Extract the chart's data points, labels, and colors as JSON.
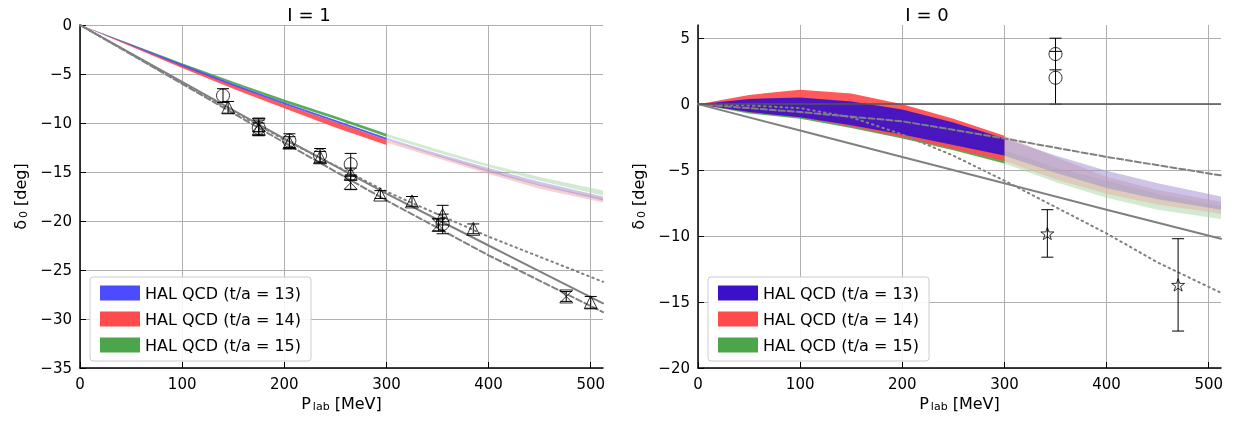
{
  "chart_data": [
    {
      "type": "line",
      "title": "I = 1",
      "xlabel": "P$_{lab}$ [MeV]",
      "ylabel": "δ$_{0}$ [deg]",
      "xlim": [
        0,
        512
      ],
      "xticks": [
        0,
        100,
        200,
        300,
        400,
        500
      ],
      "ylim": [
        -35,
        0
      ],
      "yticks": [
        -35,
        -30,
        -25,
        -20,
        -15,
        -10,
        -5,
        0
      ],
      "grid": true,
      "legend": "bottom left",
      "series": [
        {
          "type": "area",
          "name": "HAL QCD (t/a = 13)",
          "color": "#4b4bff",
          "x": [
            0,
            50,
            100,
            150,
            200,
            250,
            300
          ],
          "values": [
            null,
            null,
            null,
            null,
            null,
            null,
            null
          ],
          "lower": [
            0,
            -2.1,
            -4.2,
            -6.2,
            -8.1,
            -9.9,
            -11.7
          ],
          "upper": [
            0,
            -2.0,
            -4.0,
            -6.0,
            -7.9,
            -9.7,
            -11.5
          ]
        },
        {
          "type": "area",
          "name": "HAL QCD (t/a = 14)",
          "color": "#ff4b4b",
          "x": [
            0,
            50,
            100,
            150,
            200,
            250,
            300
          ],
          "values": [
            null,
            null,
            null,
            null,
            null,
            null,
            null
          ],
          "lower": [
            0,
            -2.2,
            -4.4,
            -6.5,
            -8.5,
            -10.45,
            -12.25
          ],
          "upper": [
            0,
            -2.05,
            -4.1,
            -6.1,
            -8.1,
            -9.9,
            -11.7
          ]
        },
        {
          "type": "area",
          "name": "HAL QCD (t/a = 15)",
          "color": "#4ba64b",
          "x": [
            0,
            50,
            100,
            150,
            200,
            250,
            300
          ],
          "values": [
            null,
            null,
            null,
            null,
            null,
            null,
            null
          ],
          "lower": [
            0,
            -2.05,
            -4.1,
            -6.0,
            -7.9,
            -9.6,
            -11.4
          ],
          "upper": [
            0,
            -1.95,
            -3.9,
            -5.8,
            -7.6,
            -9.3,
            -11.1
          ]
        },
        {
          "type": "area",
          "color": "#9c8ad0",
          "x": [
            300,
            350,
            400,
            450,
            512
          ],
          "values": [
            null,
            null,
            null,
            null,
            null
          ],
          "lower": [
            -11.7,
            -13.4,
            -15.0,
            -16.4,
            -17.9
          ],
          "upper": [
            -11.5,
            -13.1,
            -14.6,
            -16.0,
            -17.5
          ]
        },
        {
          "type": "area",
          "color": "#f4a0a0",
          "x": [
            300,
            350,
            400,
            450,
            512
          ],
          "values": [
            null,
            null,
            null,
            null,
            null
          ],
          "lower": [
            -12.0,
            -13.6,
            -15.2,
            -16.7,
            -18.1
          ],
          "upper": [
            -11.7,
            -13.3,
            -14.8,
            -16.3,
            -17.7
          ]
        },
        {
          "type": "area",
          "color": "#a6d4a6",
          "x": [
            300,
            350,
            400,
            450,
            512
          ],
          "values": [
            null,
            null,
            null,
            null,
            null
          ],
          "lower": [
            -11.4,
            -13.0,
            -14.5,
            -15.9,
            -17.4
          ],
          "upper": [
            -11.1,
            -12.7,
            -14.2,
            -15.5,
            -16.9
          ]
        },
        {
          "type": "line",
          "color": "#808080",
          "line_style": "solid",
          "marker": "none",
          "x": [
            0,
            100,
            200,
            300,
            400,
            512
          ],
          "values": [
            0,
            -5.8,
            -11.6,
            -17.2,
            -22.5,
            -28.4
          ]
        },
        {
          "type": "line",
          "color": "#808080",
          "line_style": "dashed",
          "marker": "none",
          "x": [
            0,
            100,
            200,
            300,
            400,
            512
          ],
          "values": [
            0,
            -6.0,
            -12.0,
            -17.9,
            -23.5,
            -29.3
          ]
        },
        {
          "type": "line",
          "color": "#808080",
          "line_style": "dotted",
          "marker": "none",
          "x": [
            0,
            100,
            200,
            300,
            400,
            512
          ],
          "values": [
            0,
            -5.9,
            -11.7,
            -17.0,
            -21.6,
            -26.2
          ]
        },
        {
          "type": "scatter",
          "color": "#000000",
          "marker": "circle",
          "x": [
            140,
            175,
            205,
            235,
            265,
            355
          ],
          "values": [
            -7.2,
            -10.5,
            -11.8,
            -13.3,
            -14.2,
            -20.3
          ],
          "errors": [
            0.7,
            0.8,
            0.7,
            0.7,
            1.1,
            1.0
          ]
        },
        {
          "type": "scatter",
          "color": "#000000",
          "marker": "triangle",
          "x": [
            145,
            175,
            205,
            235,
            265,
            294,
            325,
            355,
            385,
            500
          ],
          "values": [
            -8.4,
            -10.6,
            -12.0,
            -13.5,
            -15.2,
            -17.3,
            -18.0,
            -19.4,
            -20.8,
            -28.3
          ],
          "errors": [
            0.6,
            0.6,
            0.6,
            0.6,
            0.6,
            0.4,
            0.5,
            1.0,
            0.5,
            0.6
          ]
        },
        {
          "type": "scatter",
          "color": "#000000",
          "marker": "cross",
          "x": [
            175,
            265,
            351,
            476
          ],
          "values": [
            -10.2,
            -16.1,
            -20.4,
            -27.7
          ],
          "errors": [
            0.7,
            0.7,
            0.6,
            0.5
          ]
        }
      ]
    },
    {
      "type": "line",
      "title": "I = 0",
      "xlabel": "P$_{lab}$ [MeV]",
      "ylabel": "δ$_{0}$ [deg]",
      "xlim": [
        0,
        512
      ],
      "xticks": [
        0,
        100,
        200,
        300,
        400,
        500
      ],
      "ylim": [
        -20,
        6
      ],
      "yticks": [
        -20,
        -15,
        -10,
        -5,
        0,
        5
      ],
      "grid": true,
      "legend": "bottom left",
      "ref_lines": [
        {
          "axis": "y",
          "value": 0,
          "color": "#555555"
        }
      ],
      "series": [
        {
          "type": "area",
          "name": "HAL QCD (t/a = 13)",
          "color": "#3a10c8",
          "x": [
            0,
            50,
            100,
            150,
            200,
            250,
            300
          ],
          "values": [
            null,
            null,
            null,
            null,
            null,
            null,
            null
          ],
          "lower": [
            0,
            -0.6,
            -1.0,
            -1.6,
            -2.3,
            -3.1,
            -3.9
          ],
          "upper": [
            0,
            0.4,
            0.5,
            0.2,
            -0.4,
            -1.4,
            -2.6
          ]
        },
        {
          "type": "area",
          "name": "HAL QCD (t/a = 14)",
          "color": "#ff4b4b",
          "x": [
            0,
            50,
            100,
            150,
            200,
            250,
            300
          ],
          "values": [
            null,
            null,
            null,
            null,
            null,
            null,
            null
          ],
          "lower": [
            0,
            -0.6,
            -1.0,
            -1.7,
            -2.5,
            -3.4,
            -4.3
          ],
          "upper": [
            0,
            0.7,
            1.1,
            0.8,
            0,
            -1.1,
            -2.4
          ]
        },
        {
          "type": "area",
          "name": "HAL QCD (t/a = 15)",
          "color": "#4ba64b",
          "x": [
            0,
            50,
            100,
            150,
            200,
            250,
            300
          ],
          "values": [
            null,
            null,
            null,
            null,
            null,
            null,
            null
          ],
          "lower": [
            0,
            -0.7,
            -1.1,
            -1.8,
            -2.6,
            -3.5,
            -4.5
          ],
          "upper": [
            0,
            -0.4,
            -0.7,
            -1.2,
            -1.9,
            -2.8,
            -3.6
          ]
        },
        {
          "type": "area",
          "color": "#9c8ad0",
          "x": [
            300,
            350,
            400,
            450,
            512
          ],
          "values": [
            null,
            null,
            null,
            null,
            null
          ],
          "lower": [
            -3.9,
            -5.2,
            -6.35,
            -7.2,
            -8.0
          ],
          "upper": [
            -2.6,
            -3.9,
            -5.05,
            -6.0,
            -7.0
          ]
        },
        {
          "type": "area",
          "color": "#e8b0a0",
          "x": [
            300,
            350,
            400,
            450,
            512
          ],
          "values": [
            null,
            null,
            null,
            null,
            null
          ],
          "lower": [
            -4.3,
            -5.7,
            -6.8,
            -7.6,
            -8.3
          ],
          "upper": [
            -2.4,
            -4.0,
            -5.5,
            -6.5,
            -7.4
          ]
        },
        {
          "type": "area",
          "color": "#a6d4a6",
          "x": [
            300,
            350,
            400,
            450,
            512
          ],
          "values": [
            null,
            null,
            null,
            null,
            null
          ],
          "lower": [
            -4.5,
            -5.9,
            -7.1,
            -8.0,
            -8.7
          ],
          "upper": [
            -3.5,
            -4.8,
            -5.8,
            -6.8,
            -7.7
          ]
        },
        {
          "type": "line",
          "color": "#808080",
          "line_style": "solid",
          "marker": "none",
          "x": [
            0,
            100,
            200,
            300,
            400,
            512
          ],
          "values": [
            0,
            -2.0,
            -4.0,
            -6.0,
            -8.0,
            -10.2
          ]
        },
        {
          "type": "line",
          "color": "#808080",
          "line_style": "dashed",
          "marker": "none",
          "x": [
            0,
            100,
            200,
            300,
            400,
            512
          ],
          "values": [
            0,
            -0.6,
            -1.3,
            -2.6,
            -4.0,
            -5.4
          ]
        },
        {
          "type": "line",
          "color": "#808080",
          "line_style": "dotted",
          "marker": "none",
          "x": [
            0,
            50,
            100,
            150,
            200,
            250,
            300,
            350,
            400,
            450,
            512
          ],
          "values": [
            0,
            -0.1,
            -0.3,
            -1.0,
            -2.3,
            -3.9,
            -5.8,
            -7.8,
            -9.8,
            -12.0,
            -14.3
          ]
        },
        {
          "type": "scatter",
          "color": "#000000",
          "x": [
            350
          ],
          "values": [
            3.8
          ],
          "errors": [
            [
              2.6,
              5.0
            ]
          ]
        },
        {
          "type": "scatter",
          "color": "#000000",
          "x": [
            350
          ],
          "values": [
            2.0
          ],
          "errors": [
            [
              0,
              4.0
            ]
          ]
        },
        {
          "type": "scatter",
          "color": "#000000",
          "marker": "star",
          "x": [
            342,
            470
          ],
          "values": [
            -9.8,
            -13.7
          ],
          "errors": [
            1.8,
            3.5
          ]
        }
      ]
    }
  ]
}
